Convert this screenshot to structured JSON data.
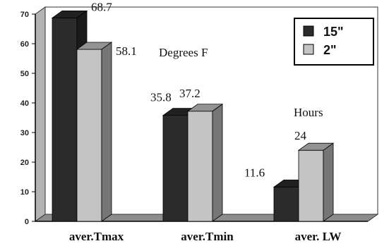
{
  "chart_data": {
    "type": "bar",
    "categories": [
      "aver.Tmax",
      "aver.Tmin",
      "aver. LW"
    ],
    "series": [
      {
        "name": "15\"",
        "values": [
          68.7,
          35.8,
          11.6
        ],
        "data_labels": [
          "68.7",
          "35.8",
          "11.6"
        ],
        "color": "#2b2b2b"
      },
      {
        "name": "2\"",
        "values": [
          58.1,
          37.2,
          24
        ],
        "data_labels": [
          "58.1",
          "37.2",
          "24"
        ],
        "color": "#c4c4c4"
      }
    ],
    "annotations": [
      "Degrees F",
      "Hours"
    ],
    "ylim": [
      0,
      70
    ],
    "yticks": [
      "0",
      "10",
      "20",
      "30",
      "40",
      "50",
      "60",
      "70"
    ],
    "legend_position": "top-right",
    "grid": false,
    "style": "3d",
    "wall_color": "#b3b3b3",
    "floor_color": "#8c8c8c"
  }
}
